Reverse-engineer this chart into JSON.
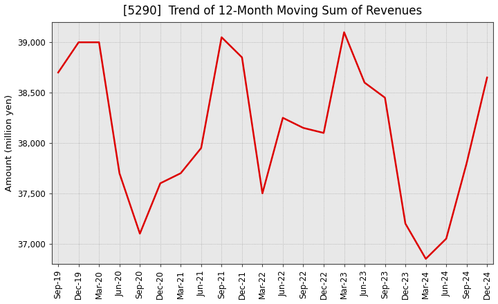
{
  "title": "[5290]  Trend of 12-Month Moving Sum of Revenues",
  "ylabel": "Amount (million yen)",
  "background_color": "#ffffff",
  "plot_bg_color": "#e8e8e8",
  "grid_color": "#aaaaaa",
  "line_color": "#dd0000",
  "x_labels": [
    "Sep-19",
    "Dec-19",
    "Mar-20",
    "Jun-20",
    "Sep-20",
    "Dec-20",
    "Mar-21",
    "Jun-21",
    "Sep-21",
    "Dec-21",
    "Mar-22",
    "Jun-22",
    "Sep-22",
    "Dec-22",
    "Mar-23",
    "Jun-23",
    "Sep-23",
    "Dec-23",
    "Mar-24",
    "Jun-24",
    "Sep-24",
    "Dec-24"
  ],
  "values": [
    38700,
    39000,
    39000,
    37700,
    37100,
    37600,
    37700,
    37950,
    39050,
    38850,
    37500,
    38250,
    38150,
    38100,
    39100,
    38600,
    38450,
    37200,
    36850,
    37050,
    37800,
    38650
  ],
  "ylim": [
    36800,
    39200
  ],
  "yticks": [
    37000,
    37500,
    38000,
    38500,
    39000
  ],
  "title_fontsize": 12,
  "tick_fontsize": 8.5,
  "ylabel_fontsize": 9.5,
  "line_width": 1.8
}
